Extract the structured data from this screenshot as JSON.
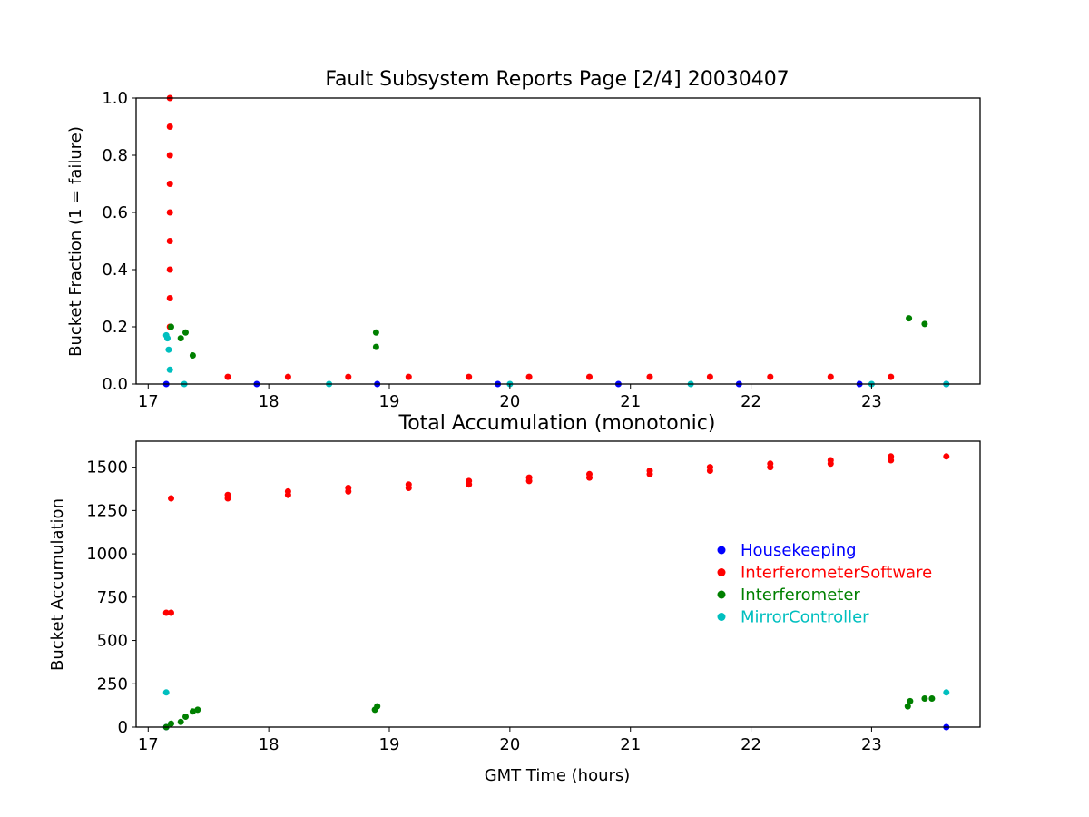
{
  "chart_data": [
    {
      "type": "scatter",
      "title": "Fault Subsystem Reports Page [2/4] 20030407",
      "xlabel": "",
      "ylabel": "Bucket Fraction (1 = failure)",
      "xlim": [
        16.9,
        23.9
      ],
      "ylim": [
        0,
        1.0
      ],
      "xticks": [
        "17",
        "18",
        "19",
        "20",
        "21",
        "22",
        "23"
      ],
      "yticks": [
        "0.0",
        "0.2",
        "0.4",
        "0.6",
        "0.8",
        "1.0"
      ],
      "grid": false,
      "series": [
        {
          "name": "Housekeeping",
          "color": "#0000ff",
          "points": [
            [
              17.15,
              0
            ],
            [
              17.9,
              0
            ],
            [
              18.9,
              0
            ],
            [
              19.9,
              0
            ],
            [
              20.9,
              0
            ],
            [
              21.9,
              0
            ],
            [
              22.9,
              0
            ],
            [
              23.62,
              0
            ]
          ]
        },
        {
          "name": "InterferometerSoftware",
          "color": "#ff0000",
          "points": [
            [
              17.18,
              0.2
            ],
            [
              17.18,
              0.3
            ],
            [
              17.18,
              0.4
            ],
            [
              17.18,
              0.5
            ],
            [
              17.18,
              0.6
            ],
            [
              17.18,
              0.7
            ],
            [
              17.18,
              0.8
            ],
            [
              17.18,
              0.9
            ],
            [
              17.18,
              1.0
            ],
            [
              17.66,
              0.025
            ],
            [
              18.16,
              0.025
            ],
            [
              18.66,
              0.025
            ],
            [
              19.16,
              0.025
            ],
            [
              19.66,
              0.025
            ],
            [
              20.16,
              0.025
            ],
            [
              20.66,
              0.025
            ],
            [
              21.16,
              0.025
            ],
            [
              21.66,
              0.025
            ],
            [
              22.16,
              0.025
            ],
            [
              22.66,
              0.025
            ],
            [
              23.16,
              0.025
            ]
          ]
        },
        {
          "name": "Interferometer",
          "color": "#008000",
          "points": [
            [
              17.19,
              0.2
            ],
            [
              17.27,
              0.16
            ],
            [
              17.31,
              0.18
            ],
            [
              17.37,
              0.1
            ],
            [
              18.89,
              0.18
            ],
            [
              18.89,
              0.13
            ],
            [
              23.31,
              0.23
            ],
            [
              23.44,
              0.21
            ]
          ]
        },
        {
          "name": "MirrorController",
          "color": "#00bfbf",
          "points": [
            [
              17.15,
              0.17
            ],
            [
              17.16,
              0.16
            ],
            [
              17.17,
              0.12
            ],
            [
              17.18,
              0.05
            ],
            [
              17.3,
              0
            ],
            [
              18.5,
              0
            ],
            [
              20,
              0
            ],
            [
              21.5,
              0
            ],
            [
              23,
              0
            ],
            [
              23.62,
              0
            ]
          ]
        }
      ]
    },
    {
      "type": "scatter",
      "title": "Total Accumulation (monotonic)",
      "xlabel": "GMT Time (hours)",
      "ylabel": "Bucket Accumulation",
      "xlim": [
        16.9,
        23.9
      ],
      "ylim": [
        0,
        1650
      ],
      "xticks": [
        "17",
        "18",
        "19",
        "20",
        "21",
        "22",
        "23"
      ],
      "yticks": [
        "0",
        "250",
        "500",
        "750",
        "1000",
        "1250",
        "1500"
      ],
      "grid": false,
      "legend_position": "center-right",
      "series": [
        {
          "name": "Housekeeping",
          "color": "#0000ff",
          "points": [
            [
              17.15,
              0
            ],
            [
              23.62,
              0
            ]
          ]
        },
        {
          "name": "InterferometerSoftware",
          "color": "#ff0000",
          "points": [
            [
              17.15,
              660
            ],
            [
              17.19,
              660
            ],
            [
              17.19,
              1320
            ],
            [
              17.66,
              1320
            ],
            [
              17.66,
              1340
            ],
            [
              18.16,
              1340
            ],
            [
              18.16,
              1360
            ],
            [
              18.66,
              1360
            ],
            [
              18.66,
              1380
            ],
            [
              19.16,
              1380
            ],
            [
              19.16,
              1400
            ],
            [
              19.66,
              1400
            ],
            [
              19.66,
              1420
            ],
            [
              20.16,
              1420
            ],
            [
              20.16,
              1440
            ],
            [
              20.66,
              1440
            ],
            [
              20.66,
              1460
            ],
            [
              21.16,
              1460
            ],
            [
              21.16,
              1480
            ],
            [
              21.66,
              1480
            ],
            [
              21.66,
              1500
            ],
            [
              22.16,
              1500
            ],
            [
              22.16,
              1520
            ],
            [
              22.66,
              1520
            ],
            [
              22.66,
              1540
            ],
            [
              23.16,
              1540
            ],
            [
              23.16,
              1562
            ],
            [
              23.62,
              1562
            ]
          ]
        },
        {
          "name": "Interferometer",
          "color": "#008000",
          "points": [
            [
              17.15,
              0
            ],
            [
              17.19,
              20
            ],
            [
              17.27,
              30
            ],
            [
              17.31,
              60
            ],
            [
              17.37,
              90
            ],
            [
              17.41,
              100
            ],
            [
              18.88,
              100
            ],
            [
              18.9,
              120
            ],
            [
              23.3,
              120
            ],
            [
              23.32,
              150
            ],
            [
              23.44,
              165
            ],
            [
              23.5,
              165
            ]
          ]
        },
        {
          "name": "MirrorController",
          "color": "#00bfbf",
          "points": [
            [
              17.15,
              200
            ],
            [
              23.62,
              200
            ]
          ]
        }
      ],
      "legend": [
        "Housekeeping",
        "InterferometerSoftware",
        "Interferometer",
        "MirrorController"
      ]
    }
  ]
}
